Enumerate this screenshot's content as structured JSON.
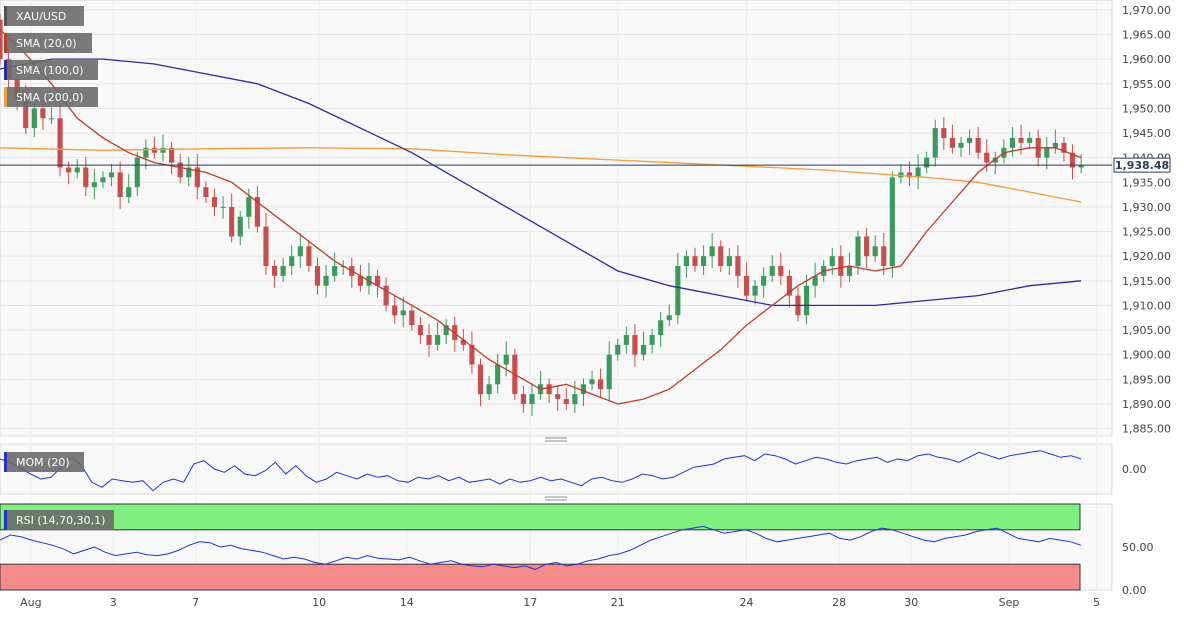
{
  "chart_data": {
    "type": "candlestick",
    "symbol": "XAU/USD",
    "last_price_label": "1,938.48",
    "last_price": 1938.48,
    "legend": [
      {
        "label": "XAU/USD",
        "color": "#555555"
      },
      {
        "label": "SMA (20,0)",
        "color": "#c0392b"
      },
      {
        "label": "SMA (100,0)",
        "color": "#2e2aa0"
      },
      {
        "label": "SMA (200,0)",
        "color": "#f39c3c"
      }
    ],
    "price_axis": {
      "ylim": [
        1883.5,
        1972
      ],
      "ticks": [
        1885,
        1890,
        1895,
        1900,
        1905,
        1910,
        1915,
        1920,
        1925,
        1930,
        1935,
        1940,
        1945,
        1950,
        1955,
        1960,
        1965,
        1970
      ],
      "tick_labels": [
        "1,885.00",
        "1,890.00",
        "1,895.00",
        "1,900.00",
        "1,905.00",
        "1,910.00",
        "1,915.00",
        "1,920.00",
        "1,925.00",
        "1,930.00",
        "1,935.00",
        "1,940.00",
        "1,945.00",
        "1,950.00",
        "1,955.00",
        "1,960.00",
        "1,965.00",
        "1,970.00"
      ]
    },
    "x_axis": {
      "labels": [
        {
          "label": "Aug",
          "pos": 6
        },
        {
          "label": "3",
          "pos": 22
        },
        {
          "label": "7",
          "pos": 38
        },
        {
          "label": "10",
          "pos": 62
        },
        {
          "label": "14",
          "pos": 79
        },
        {
          "label": "17",
          "pos": 103
        },
        {
          "label": "21",
          "pos": 120
        },
        {
          "label": "24",
          "pos": 145
        },
        {
          "label": "28",
          "pos": 163
        },
        {
          "label": "30",
          "pos": 177
        },
        {
          "label": "Sep",
          "pos": 196
        },
        {
          "label": "5",
          "pos": 213
        }
      ],
      "xlim": [
        0,
        216
      ]
    },
    "series_sma20": {
      "name": "SMA (20,0)",
      "color": "#c0392b",
      "x": [
        0,
        5,
        10,
        15,
        20,
        25,
        30,
        35,
        40,
        45,
        50,
        55,
        60,
        65,
        70,
        75,
        80,
        85,
        90,
        95,
        100,
        105,
        110,
        115,
        120,
        125,
        130,
        135,
        140,
        145,
        150,
        155,
        160,
        165,
        170,
        175,
        180,
        185,
        190,
        195,
        200,
        205,
        210
      ],
      "y": [
        1966,
        1961,
        1955,
        1948,
        1944,
        1941,
        1939,
        1938,
        1937,
        1935,
        1931,
        1927,
        1923,
        1919,
        1916,
        1913,
        1910,
        1907,
        1903,
        1899,
        1896,
        1893,
        1894,
        1892,
        1890,
        1891,
        1893,
        1897,
        1901,
        1906,
        1910,
        1914,
        1917,
        1918,
        1917,
        1918,
        1925,
        1931,
        1937,
        1941,
        1942,
        1942,
        1940
      ]
    },
    "series_sma100": {
      "name": "SMA (100,0)",
      "color": "#2e2aa0",
      "x": [
        0,
        10,
        20,
        30,
        40,
        50,
        60,
        70,
        80,
        90,
        100,
        110,
        120,
        130,
        140,
        150,
        160,
        170,
        180,
        190,
        200,
        210
      ],
      "y": [
        1958,
        1960,
        1960,
        1959,
        1957,
        1955,
        1951,
        1946,
        1941,
        1935,
        1929,
        1923,
        1917,
        1914,
        1912,
        1910,
        1910,
        1910,
        1911,
        1912,
        1914,
        1915
      ]
    },
    "series_sma200": {
      "name": "SMA (200,0)",
      "color": "#f39c3c",
      "x": [
        0,
        20,
        40,
        60,
        80,
        100,
        120,
        140,
        160,
        180,
        190,
        200,
        210
      ],
      "y": [
        1942,
        1941.5,
        1941.8,
        1942,
        1941.8,
        1940.5,
        1939.5,
        1938.5,
        1937.5,
        1936,
        1935,
        1933,
        1931
      ]
    },
    "candles": {
      "open": [
        1968,
        1960,
        1956,
        1952,
        1946,
        1950,
        1948,
        1948,
        1938,
        1937,
        1938,
        1934,
        1935,
        1936,
        1937,
        1932,
        1934,
        1940,
        1942,
        1941,
        1942,
        1939,
        1936,
        1938,
        1934,
        1932,
        1930,
        1930,
        1924,
        1928,
        1932,
        1926,
        1918,
        1916,
        1918,
        1920,
        1922,
        1918,
        1914,
        1916,
        1918,
        1918,
        1916,
        1914,
        1916,
        1914,
        1910,
        1908,
        1909,
        1906,
        1904,
        1902,
        1904,
        1906,
        1903,
        1902,
        1898,
        1892,
        1894,
        1898,
        1900,
        1892,
        1890,
        1892,
        1894,
        1892,
        1891,
        1890,
        1892,
        1894,
        1895,
        1893,
        1900,
        1902,
        1904,
        1900,
        1902,
        1904,
        1907,
        1908,
        1918,
        1920,
        1918,
        1920,
        1922,
        1918,
        1920,
        1916,
        1912,
        1914,
        1916,
        1918,
        1916,
        1912,
        1908,
        1914,
        1916,
        1918,
        1920,
        1916,
        1918,
        1924,
        1920,
        1922,
        1918,
        1936,
        1937,
        1936,
        1938,
        1940,
        1946,
        1944,
        1942,
        1943,
        1944,
        1941,
        1939,
        1940,
        1942,
        1944,
        1943,
        1944,
        1940,
        1942,
        1943,
        1941,
        1938
      ],
      "close": [
        1960,
        1956,
        1952,
        1946,
        1950,
        1948,
        1948,
        1938,
        1937,
        1938,
        1934,
        1935,
        1936,
        1937,
        1932,
        1934,
        1940,
        1942,
        1941,
        1942,
        1939,
        1936,
        1938,
        1934,
        1932,
        1930,
        1930,
        1924,
        1928,
        1932,
        1926,
        1918,
        1916,
        1918,
        1920,
        1922,
        1918,
        1914,
        1916,
        1918,
        1918,
        1916,
        1914,
        1916,
        1914,
        1910,
        1908,
        1909,
        1906,
        1904,
        1902,
        1904,
        1906,
        1903,
        1902,
        1898,
        1892,
        1894,
        1898,
        1900,
        1892,
        1890,
        1892,
        1894,
        1892,
        1891,
        1890,
        1892,
        1894,
        1895,
        1893,
        1900,
        1902,
        1904,
        1900,
        1902,
        1904,
        1907,
        1908,
        1918,
        1920,
        1918,
        1920,
        1922,
        1918,
        1920,
        1916,
        1912,
        1914,
        1916,
        1918,
        1916,
        1912,
        1908,
        1914,
        1916,
        1918,
        1920,
        1916,
        1918,
        1924,
        1920,
        1922,
        1918,
        1936,
        1937,
        1936,
        1938,
        1940,
        1946,
        1944,
        1942,
        1943,
        1944,
        1941,
        1939,
        1940,
        1942,
        1944,
        1943,
        1944,
        1940,
        1942,
        1943,
        1941,
        1938,
        1938.5
      ]
    },
    "momentum_panel": {
      "label": "MOM (20)",
      "ylim": [
        -3,
        3
      ],
      "ticks": [
        0
      ],
      "tick_labels": [
        "0.00"
      ],
      "color": "#2233cc",
      "values": [
        1.2,
        0.8,
        0.1,
        -0.6,
        -1.2,
        -1.0,
        0.2,
        1.4,
        0.4,
        -1.6,
        -2.2,
        -1.2,
        -1.4,
        -1.6,
        -1.4,
        -2.6,
        -1.6,
        -1.2,
        -1.6,
        0.6,
        1.0,
        0.0,
        -0.4,
        0.4,
        -0.6,
        -0.8,
        -0.2,
        0.8,
        -0.6,
        0.4,
        -0.8,
        -1.6,
        -1.2,
        -0.4,
        -0.8,
        -1.2,
        -0.6,
        -1.0,
        -0.8,
        -1.4,
        -1.6,
        -1.0,
        -1.2,
        -0.8,
        -1.4,
        -1.0,
        -1.6,
        -1.4,
        -1.2,
        -1.8,
        -1.2,
        -1.6,
        -1.4,
        -1.0,
        -1.4,
        -1.2,
        -1.6,
        -2.0,
        -1.2,
        -1.0,
        -1.4,
        -1.6,
        -1.2,
        -0.6,
        -0.8,
        -1.2,
        -1.0,
        -0.4,
        0.2,
        0.4,
        0.6,
        1.2,
        1.4,
        1.6,
        1.0,
        1.8,
        1.6,
        1.2,
        0.6,
        1.0,
        1.4,
        1.2,
        0.8,
        0.6,
        1.0,
        1.2,
        1.4,
        0.8,
        1.2,
        1.0,
        1.6,
        1.8,
        1.4,
        1.2,
        0.8,
        1.4,
        2.0,
        1.6,
        1.2,
        1.6,
        1.8,
        2.0,
        2.2,
        1.8,
        1.4,
        1.6,
        1.2
      ]
    },
    "rsi_panel": {
      "label": "RSI (14,70,30,1)",
      "ylim": [
        0,
        100
      ],
      "overbought": 70,
      "oversold": 30,
      "ticks": [
        0,
        50
      ],
      "tick_labels": [
        "0.00",
        "50.00"
      ],
      "color": "#2233cc",
      "values": [
        58,
        64,
        62,
        58,
        55,
        52,
        48,
        42,
        46,
        50,
        44,
        40,
        42,
        44,
        41,
        40,
        42,
        46,
        52,
        56,
        55,
        50,
        52,
        48,
        46,
        44,
        40,
        36,
        38,
        36,
        32,
        30,
        34,
        38,
        36,
        40,
        37,
        36,
        35,
        38,
        34,
        30,
        32,
        34,
        30,
        28,
        27,
        30,
        28,
        26,
        28,
        24,
        30,
        32,
        28,
        30,
        34,
        36,
        40,
        42,
        46,
        52,
        58,
        62,
        66,
        70,
        72,
        74,
        70,
        66,
        68,
        70,
        66,
        60,
        56,
        58,
        60,
        62,
        64,
        66,
        60,
        58,
        62,
        68,
        72,
        70,
        66,
        62,
        58,
        56,
        60,
        62,
        64,
        68,
        70,
        72,
        66,
        60,
        58,
        56,
        60,
        58,
        56,
        52
      ]
    }
  }
}
